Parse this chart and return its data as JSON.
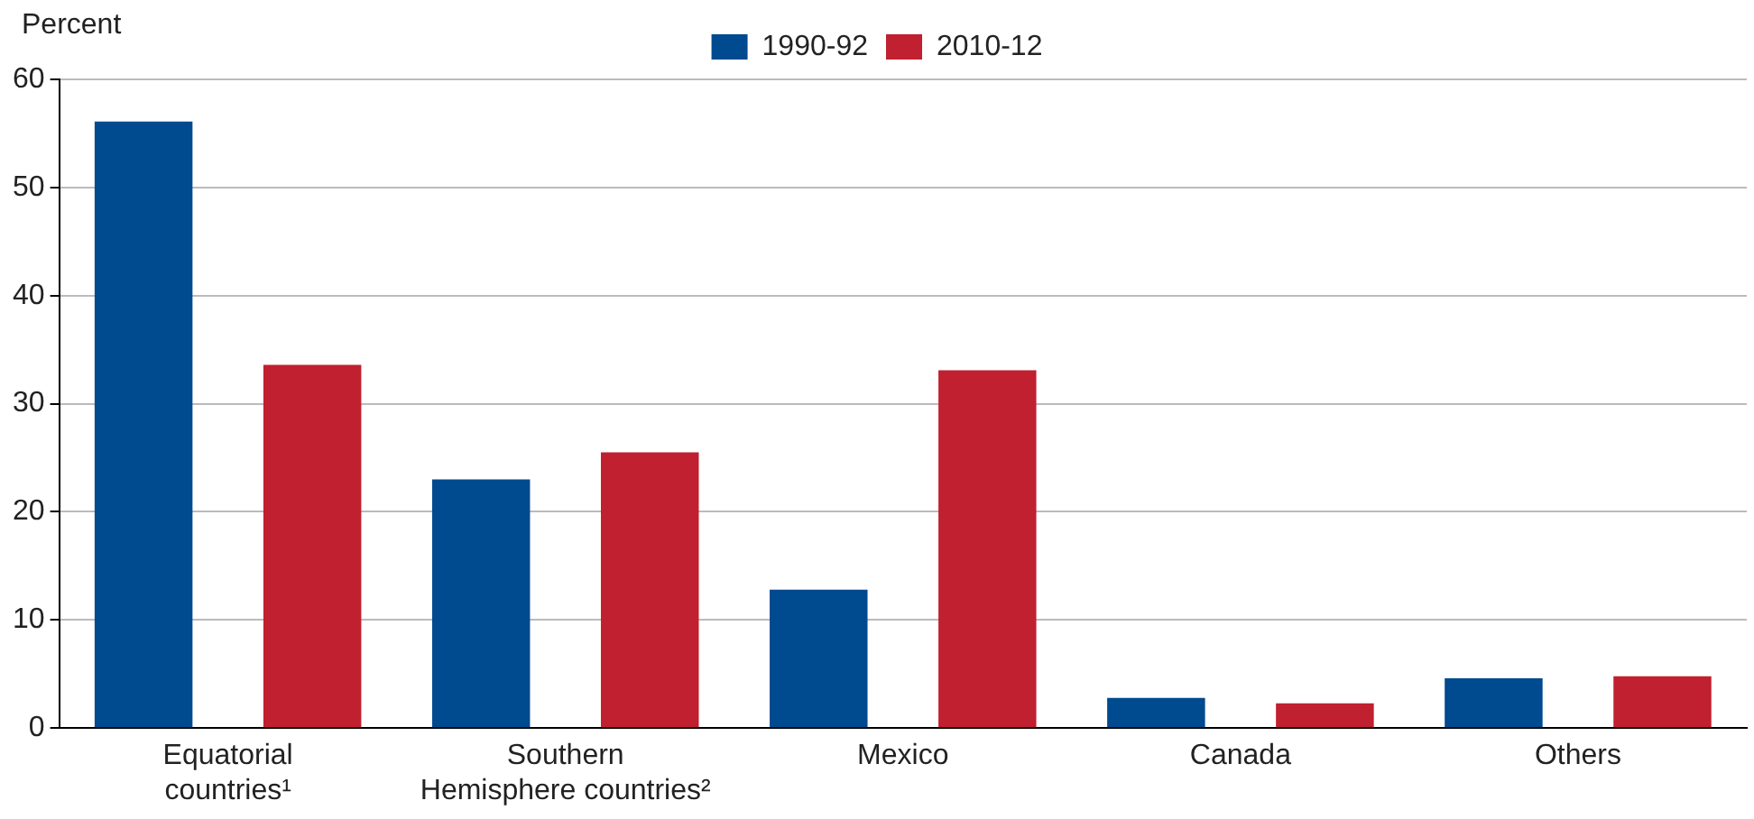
{
  "chart_data": {
    "type": "bar",
    "ylabel": "Percent",
    "categories": [
      "Equatorial countries¹",
      "Southern Hemisphere countries²",
      "Mexico",
      "Canada",
      "Others"
    ],
    "series": [
      {
        "name": "1990-92",
        "color": "#004a8f",
        "values": [
          56.1,
          23.0,
          12.8,
          2.8,
          4.6
        ]
      },
      {
        "name": "2010-12",
        "color": "#c0202f",
        "values": [
          33.6,
          25.5,
          33.1,
          2.3,
          4.8
        ]
      }
    ],
    "ylim": [
      0,
      60
    ],
    "yticks": [
      0,
      10,
      20,
      30,
      40,
      50,
      60
    ],
    "grid": "y",
    "legend": "top"
  }
}
